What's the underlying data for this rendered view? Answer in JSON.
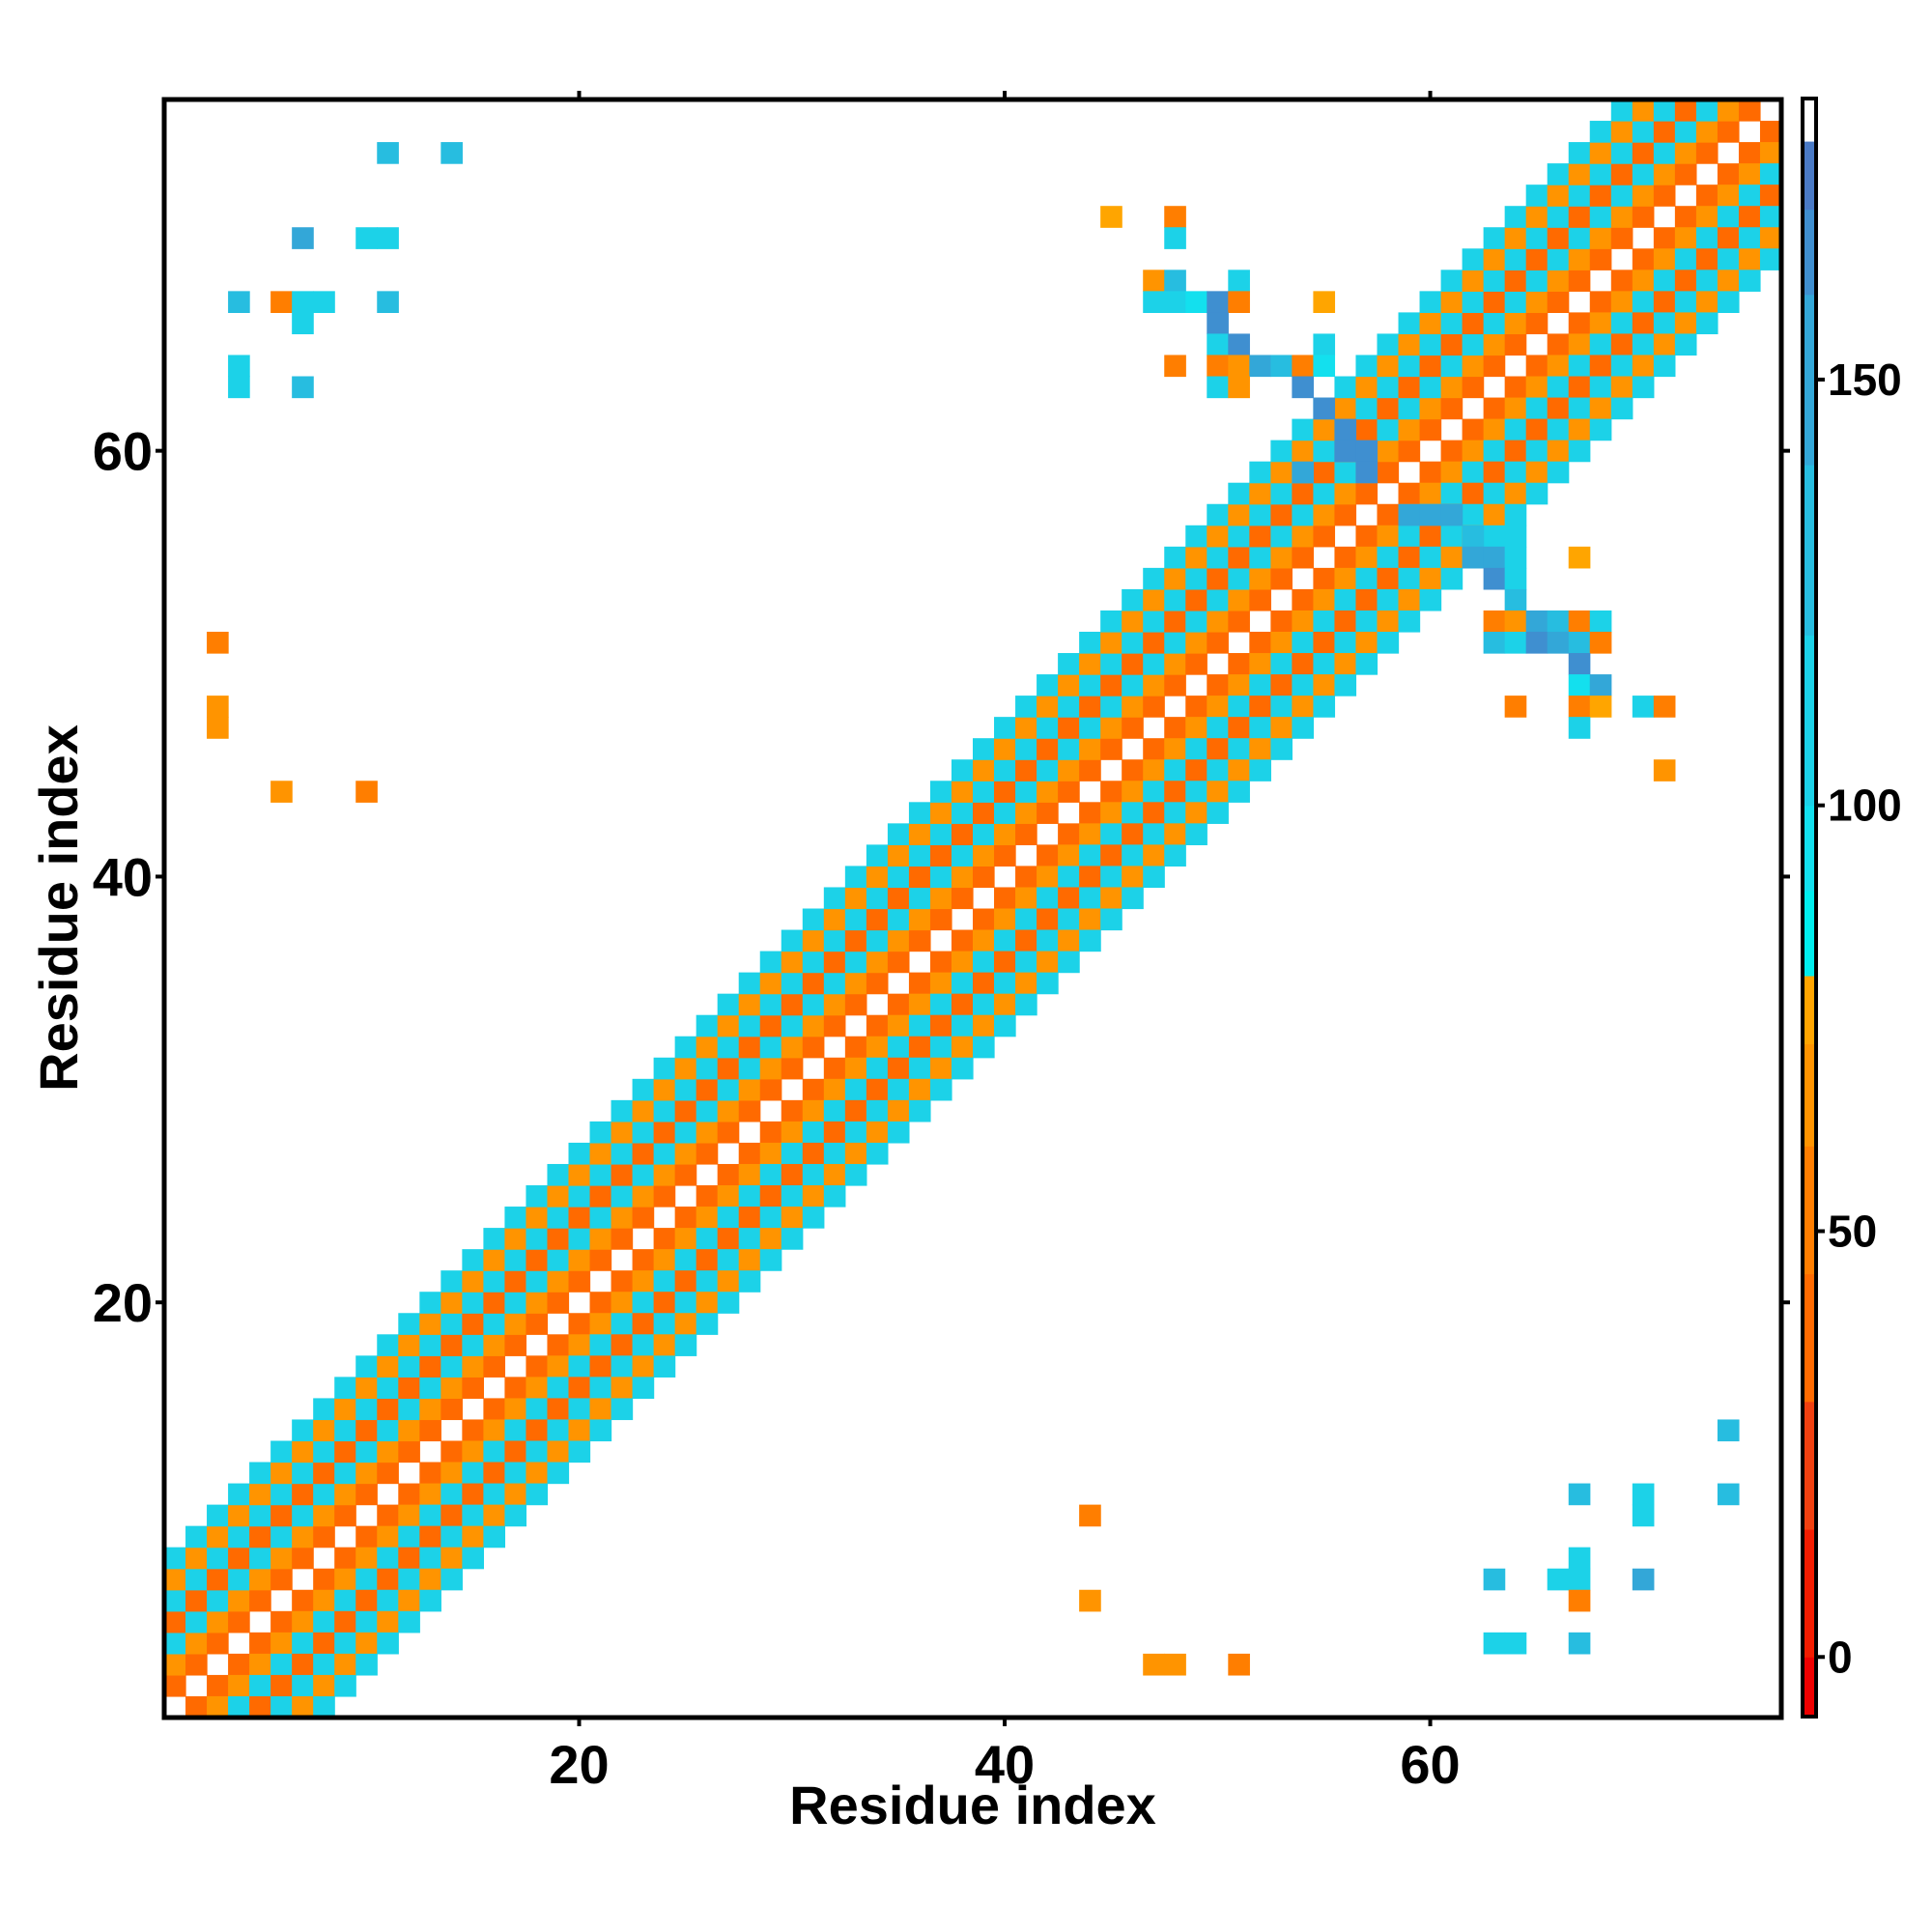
{
  "chart_data": {
    "type": "heatmap",
    "title": "",
    "xlabel": "Residue index",
    "ylabel": "Residue index",
    "xlim": [
      0.5,
      76.5
    ],
    "ylim": [
      0.5,
      76.5
    ],
    "x_ticks": [
      20,
      40,
      60
    ],
    "y_ticks": [
      20,
      40,
      60
    ],
    "x_tick_labels": [
      "20",
      "40",
      "60"
    ],
    "y_tick_labels": [
      "20",
      "40",
      "60"
    ],
    "grid": false,
    "colorbar": {
      "range": [
        -7,
        183
      ],
      "ticks": [
        0,
        50,
        100,
        150
      ],
      "tick_labels": [
        "0",
        "50",
        "100",
        "150"
      ],
      "segments": [
        {
          "from": -7,
          "to": 0,
          "color": "#ee0000"
        },
        {
          "from": 0,
          "to": 15,
          "color": "#f21c00"
        },
        {
          "from": 15,
          "to": 30,
          "color": "#f04010"
        },
        {
          "from": 30,
          "to": 45,
          "color": "#ff6a00"
        },
        {
          "from": 45,
          "to": 60,
          "color": "#ff7e00"
        },
        {
          "from": 60,
          "to": 72,
          "color": "#ff9400"
        },
        {
          "from": 72,
          "to": 80,
          "color": "#ffa500"
        },
        {
          "from": 80,
          "to": 90,
          "color": "#00eeee"
        },
        {
          "from": 90,
          "to": 100,
          "color": "#13e0ee"
        },
        {
          "from": 100,
          "to": 120,
          "color": "#1cd2e8"
        },
        {
          "from": 120,
          "to": 140,
          "color": "#27bde0"
        },
        {
          "from": 140,
          "to": 160,
          "color": "#33a7d8"
        },
        {
          "from": 160,
          "to": 170,
          "color": "#3f8fd0"
        },
        {
          "from": 170,
          "to": 178,
          "color": "#4a7ac6"
        },
        {
          "from": 178,
          "to": 183,
          "color": "#ffffff"
        }
      ]
    },
    "band_values": [
      null,
      30,
      60,
      105,
      30,
      100,
      60,
      110
    ],
    "diagonal_band_range": [
      1,
      76
    ],
    "off_diagonal_cells": [
      [
        11,
        74,
        125
      ],
      [
        14,
        74,
        125
      ],
      [
        7,
        70,
        140
      ],
      [
        10,
        70,
        110
      ],
      [
        11,
        70,
        110
      ],
      [
        4,
        67,
        125
      ],
      [
        6,
        67,
        55
      ],
      [
        7,
        67,
        100
      ],
      [
        8,
        67,
        100
      ],
      [
        11,
        67,
        125
      ],
      [
        7,
        66,
        100
      ],
      [
        4,
        64,
        100
      ],
      [
        4,
        63,
        100
      ],
      [
        7,
        63,
        125
      ],
      [
        3,
        51,
        45
      ],
      [
        3,
        48,
        65
      ],
      [
        3,
        47,
        65
      ],
      [
        6,
        44,
        65
      ],
      [
        10,
        44,
        50
      ],
      [
        45,
        71,
        75
      ],
      [
        48,
        71,
        50
      ],
      [
        48,
        70,
        100
      ],
      [
        47,
        68,
        65
      ],
      [
        48,
        68,
        125
      ],
      [
        51,
        68,
        110
      ],
      [
        47,
        67,
        100
      ],
      [
        48,
        67,
        110
      ],
      [
        49,
        67,
        90
      ],
      [
        50,
        67,
        160
      ],
      [
        51,
        67,
        50
      ],
      [
        55,
        67,
        75
      ],
      [
        50,
        66,
        160
      ],
      [
        50,
        65,
        100
      ],
      [
        51,
        65,
        160
      ],
      [
        55,
        65,
        100
      ],
      [
        48,
        64,
        50
      ],
      [
        50,
        64,
        50
      ],
      [
        51,
        64,
        65
      ],
      [
        52,
        64,
        150
      ],
      [
        53,
        64,
        125
      ],
      [
        54,
        64,
        50
      ],
      [
        55,
        64,
        90
      ],
      [
        50,
        63,
        100
      ],
      [
        51,
        63,
        65
      ],
      [
        54,
        63,
        160
      ],
      [
        55,
        62,
        160
      ],
      [
        56,
        61,
        160
      ],
      [
        56,
        60,
        160
      ],
      [
        57,
        60,
        160
      ],
      [
        57,
        59,
        160
      ],
      [
        54,
        59,
        140
      ],
      [
        59,
        57,
        140
      ],
      [
        60,
        57,
        140
      ],
      [
        61,
        57,
        140
      ],
      [
        62,
        56,
        125
      ],
      [
        64,
        56,
        110
      ],
      [
        62,
        55,
        150
      ],
      [
        63,
        55,
        150
      ],
      [
        64,
        55,
        110
      ],
      [
        67,
        55,
        75
      ],
      [
        63,
        54,
        160
      ],
      [
        64,
        54,
        110
      ],
      [
        64,
        53,
        125
      ],
      [
        63,
        52,
        50
      ],
      [
        64,
        52,
        65
      ],
      [
        65,
        52,
        150
      ],
      [
        66,
        52,
        125
      ],
      [
        67,
        52,
        50
      ],
      [
        68,
        52,
        110
      ],
      [
        63,
        51,
        125
      ],
      [
        64,
        51,
        110
      ],
      [
        65,
        51,
        160
      ],
      [
        66,
        51,
        140
      ],
      [
        67,
        51,
        125
      ],
      [
        68,
        51,
        50
      ],
      [
        67,
        50,
        160
      ],
      [
        67,
        49,
        90
      ],
      [
        68,
        49,
        150
      ],
      [
        64,
        48,
        50
      ],
      [
        67,
        48,
        50
      ],
      [
        68,
        48,
        75
      ],
      [
        70,
        48,
        100
      ],
      [
        71,
        48,
        50
      ],
      [
        67,
        47,
        110
      ],
      [
        71,
        45,
        65
      ],
      [
        74,
        14,
        125
      ],
      [
        67,
        11,
        125
      ],
      [
        70,
        11,
        100
      ],
      [
        74,
        11,
        125
      ],
      [
        70,
        10,
        100
      ],
      [
        44,
        10,
        50
      ],
      [
        67,
        8,
        100
      ],
      [
        63,
        7,
        125
      ],
      [
        66,
        7,
        100
      ],
      [
        67,
        7,
        100
      ],
      [
        70,
        7,
        140
      ],
      [
        44,
        6,
        65
      ],
      [
        67,
        6,
        50
      ],
      [
        63,
        4,
        110
      ],
      [
        64,
        4,
        110
      ],
      [
        67,
        4,
        125
      ],
      [
        47,
        3,
        65
      ],
      [
        48,
        3,
        65
      ],
      [
        51,
        3,
        50
      ]
    ]
  }
}
